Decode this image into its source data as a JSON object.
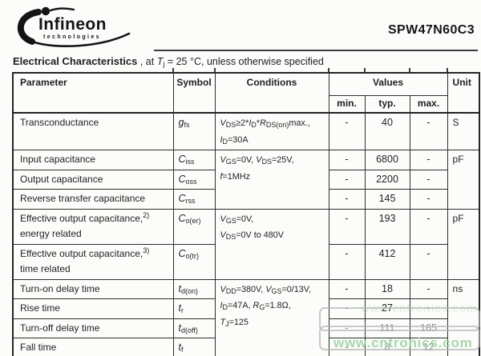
{
  "header": {
    "logo": {
      "brand": "Infineon",
      "sub": "technologies"
    },
    "part_number": "SPW47N60C3",
    "section_title": "Electrical Characteristics",
    "subtitle": [
      {
        "t": " , at "
      },
      {
        "t": "T",
        "i": true
      },
      {
        "t": "j",
        "s": true
      },
      {
        "t": " = 25 °C, unless otherwise specified"
      }
    ]
  },
  "table": {
    "col_headers": {
      "parameter": "Parameter",
      "symbol": "Symbol",
      "conditions": "Conditions",
      "values": "Values",
      "min": "min.",
      "typ": "typ.",
      "max": "max.",
      "unit": "Unit"
    },
    "rows": [
      {
        "parameter": [
          [
            {
              "t": "Transconductance"
            }
          ]
        ],
        "symbol": [
          {
            "t": "g",
            "i": true
          },
          {
            "t": "fs",
            "s": true
          }
        ],
        "conditions": {
          "span": 1,
          "lines": [
            [
              {
                "t": "V",
                "i": true
              },
              {
                "t": "DS",
                "s": true
              },
              {
                "t": "≥2*"
              },
              {
                "t": "I",
                "i": true
              },
              {
                "t": "D",
                "s": true
              },
              {
                "t": "*"
              },
              {
                "t": "R",
                "i": true
              },
              {
                "t": "DS(on)",
                "s": true
              },
              {
                "t": "max.,"
              }
            ],
            [
              {
                "t": "I",
                "i": true
              },
              {
                "t": "D",
                "s": true
              },
              {
                "t": "=30A"
              }
            ]
          ]
        },
        "min": "-",
        "typ": "40",
        "max": "-",
        "unit": {
          "span": 1,
          "text": "S"
        }
      },
      {
        "parameter": [
          [
            {
              "t": "Input capacitance"
            }
          ]
        ],
        "symbol": [
          {
            "t": "C",
            "i": true
          },
          {
            "t": "iss",
            "s": true
          }
        ],
        "conditions": {
          "span": 3,
          "lines": [
            [
              {
                "t": "V",
                "i": true
              },
              {
                "t": "GS",
                "s": true
              },
              {
                "t": "=0V, "
              },
              {
                "t": "V",
                "i": true
              },
              {
                "t": "DS",
                "s": true
              },
              {
                "t": "=25V,"
              }
            ],
            [
              {
                "t": "f",
                "i": true
              },
              {
                "t": "=1MHz"
              }
            ]
          ]
        },
        "min": "-",
        "typ": "6800",
        "max": "-",
        "unit": {
          "span": 3,
          "text": "pF"
        }
      },
      {
        "parameter": [
          [
            {
              "t": "Output capacitance"
            }
          ]
        ],
        "symbol": [
          {
            "t": "C",
            "i": true
          },
          {
            "t": "oss",
            "s": true
          }
        ],
        "min": "-",
        "typ": "2200",
        "max": "-"
      },
      {
        "parameter": [
          [
            {
              "t": "Reverse transfer capacitance"
            }
          ]
        ],
        "symbol": [
          {
            "t": "C",
            "i": true
          },
          {
            "t": "rss",
            "s": true
          }
        ],
        "min": "-",
        "typ": "145",
        "max": "-"
      },
      {
        "parameter": [
          [
            {
              "t": "Effective output capacitance,"
            },
            {
              "t": "2)",
              "p": true
            }
          ],
          [
            {
              "t": "energy related"
            }
          ]
        ],
        "symbol": [
          {
            "t": "C",
            "i": true
          },
          {
            "t": "o(er)",
            "s": true
          }
        ],
        "conditions": {
          "span": 2,
          "lines": [
            [
              {
                "t": "V",
                "i": true
              },
              {
                "t": "GS",
                "s": true
              },
              {
                "t": "=0V,"
              }
            ],
            [
              {
                "t": "V",
                "i": true
              },
              {
                "t": "DS",
                "s": true
              },
              {
                "t": "=0V to 480V"
              }
            ]
          ]
        },
        "min": "-",
        "typ": "193",
        "max": "-",
        "unit": {
          "span": 2,
          "text": "pF"
        }
      },
      {
        "parameter": [
          [
            {
              "t": "Effective output capacitance,"
            },
            {
              "t": "3)",
              "p": true
            }
          ],
          [
            {
              "t": "time related"
            }
          ]
        ],
        "symbol": [
          {
            "t": "C",
            "i": true
          },
          {
            "t": "o(tr)",
            "s": true
          }
        ],
        "min": "-",
        "typ": "412",
        "max": "-"
      },
      {
        "parameter": [
          [
            {
              "t": "Turn-on delay time"
            }
          ]
        ],
        "symbol": [
          {
            "t": "t",
            "i": true
          },
          {
            "t": "d(on)",
            "s": true
          }
        ],
        "conditions": {
          "span": 4,
          "lines": [
            [
              {
                "t": "V",
                "i": true
              },
              {
                "t": "DD",
                "s": true
              },
              {
                "t": "=380V, "
              },
              {
                "t": "V",
                "i": true
              },
              {
                "t": "GS",
                "s": true
              },
              {
                "t": "=0/13V,"
              }
            ],
            [
              {
                "t": "I",
                "i": true
              },
              {
                "t": "D",
                "s": true
              },
              {
                "t": "=47A, "
              },
              {
                "t": "R",
                "i": true
              },
              {
                "t": "G",
                "s": true
              },
              {
                "t": "=1.8Ω,"
              }
            ],
            [
              {
                "t": "T",
                "i": true
              },
              {
                "t": "J",
                "s": true
              },
              {
                "t": "=125"
              }
            ]
          ]
        },
        "min": "-",
        "typ": "18",
        "max": "-",
        "unit": {
          "span": 4,
          "text": "ns"
        }
      },
      {
        "parameter": [
          [
            {
              "t": "Rise time"
            }
          ]
        ],
        "symbol": [
          {
            "t": "t",
            "i": true
          },
          {
            "t": "r",
            "s": true
          }
        ],
        "min": "-",
        "typ": "27",
        "max": "-"
      },
      {
        "parameter": [
          [
            {
              "t": "Turn-off delay time"
            }
          ]
        ],
        "symbol": [
          {
            "t": "t",
            "i": true
          },
          {
            "t": "d(off)",
            "s": true
          }
        ],
        "min": "-",
        "typ": "111",
        "max": "165",
        "faded": true
      },
      {
        "parameter": [
          [
            {
              "t": "Fall time"
            }
          ]
        ],
        "symbol": [
          {
            "t": "t",
            "i": true
          },
          {
            "t": "f",
            "s": true
          }
        ],
        "min": "-",
        "typ": "8",
        "max": "12",
        "faded": true
      }
    ]
  },
  "watermark": {
    "text": "www.cntronics.com",
    "color": "#9ed3a4"
  }
}
